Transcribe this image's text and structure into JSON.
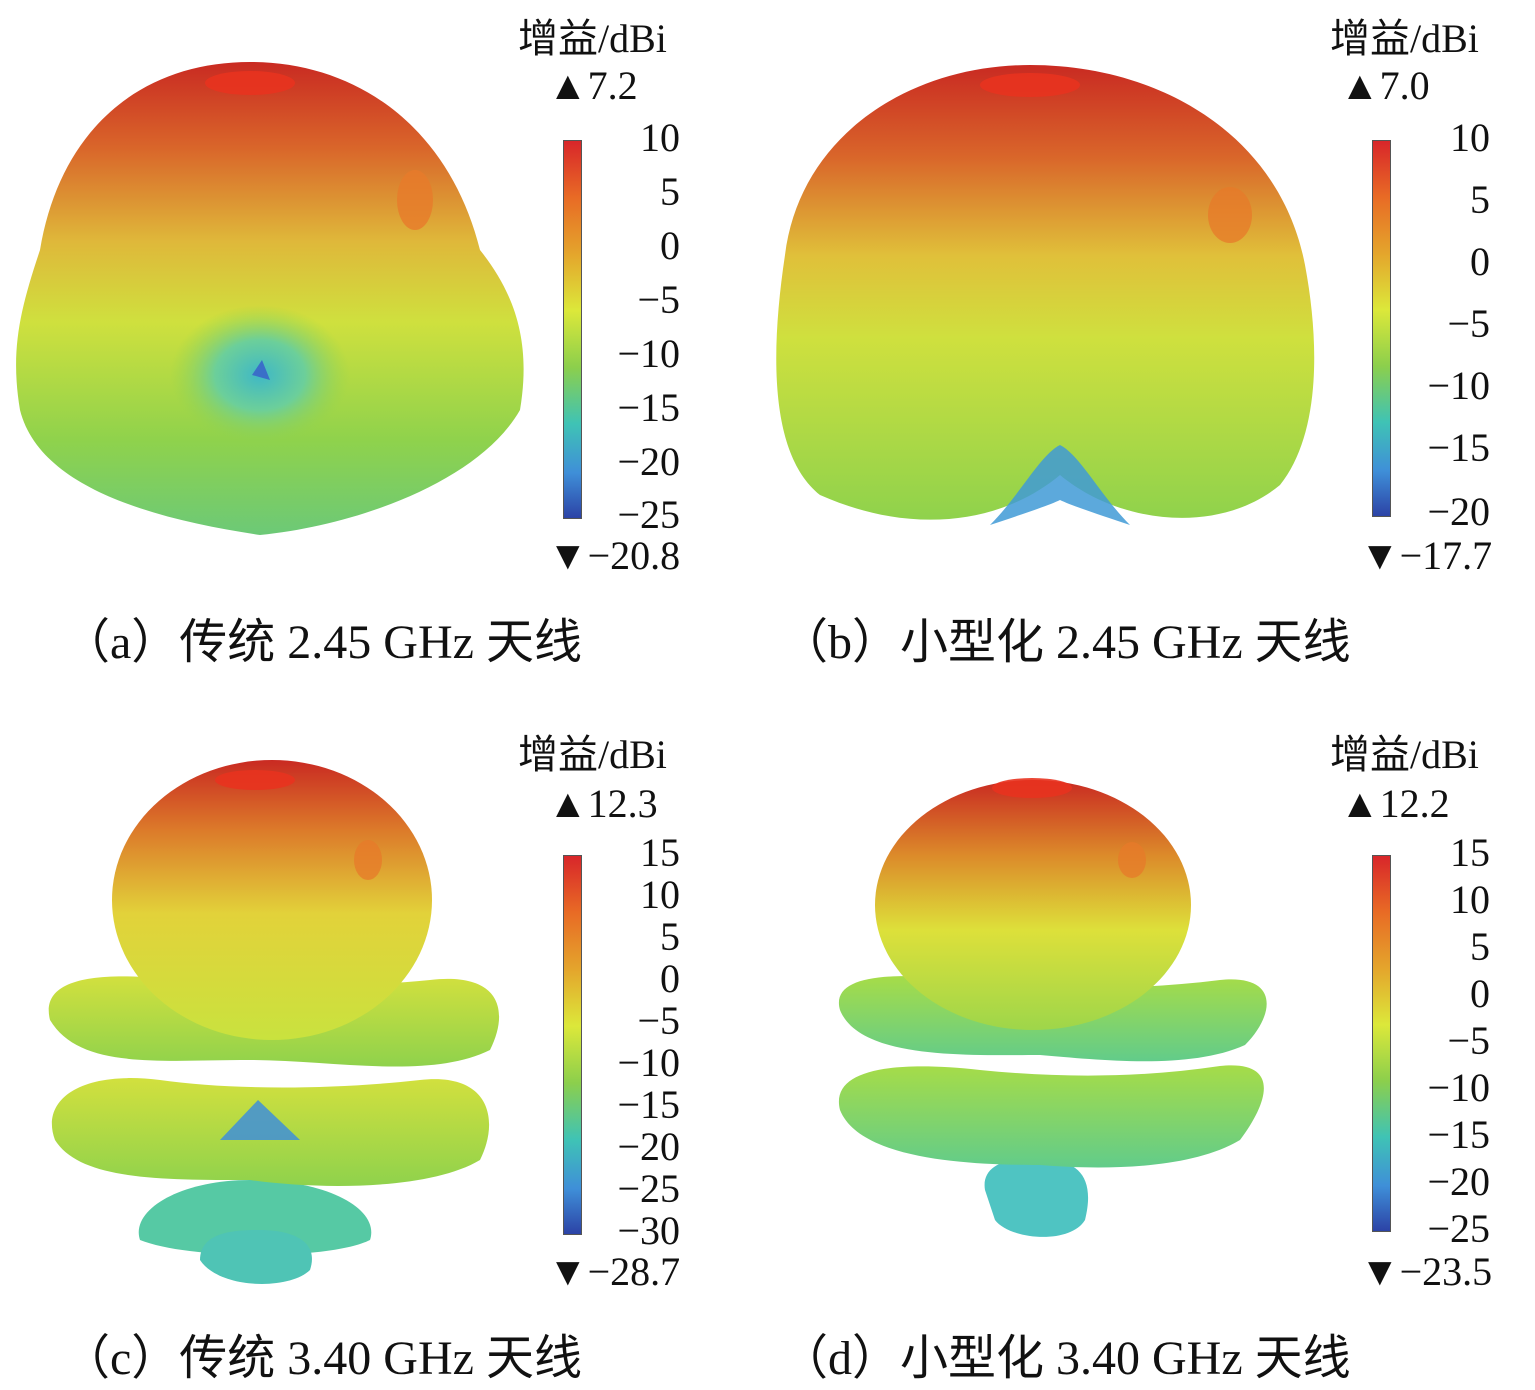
{
  "panels": [
    {
      "unit_label": "增益/dBi",
      "max_label": "▲7.2",
      "min_label": "▼−20.8",
      "ticks": [
        "10",
        "5",
        "0",
        "−5",
        "−10",
        "−15",
        "−20",
        "−25"
      ],
      "caption": "（a）传统 2.45 GHz 天线"
    },
    {
      "unit_label": "增益/dBi",
      "max_label": "▲7.0",
      "min_label": "▼−17.7",
      "ticks": [
        "10",
        "5",
        "0",
        "−5",
        "−10",
        "−15",
        "−20"
      ],
      "caption": "（b）小型化 2.45 GHz 天线"
    },
    {
      "unit_label": "增益/dBi",
      "max_label": "▲12.3",
      "min_label": "▼−28.7",
      "ticks": [
        "15",
        "10",
        "5",
        "0",
        "−5",
        "−10",
        "−15",
        "−20",
        "−25",
        "−30"
      ],
      "caption": "（c）传统 3.40 GHz 天线"
    },
    {
      "unit_label": "增益/dBi",
      "max_label": "▲12.2",
      "min_label": "▼−23.5",
      "ticks": [
        "15",
        "10",
        "5",
        "0",
        "−5",
        "−10",
        "−15",
        "−20",
        "−25"
      ],
      "caption": "（d）小型化 3.40 GHz 天线"
    }
  ],
  "colors": {
    "high": "#d8262a",
    "upper": "#e4a52c",
    "mid": "#dce83a",
    "lower": "#8ccf4c",
    "low_cyan": "#3fc3b5",
    "lowest": "#2c43a6"
  }
}
